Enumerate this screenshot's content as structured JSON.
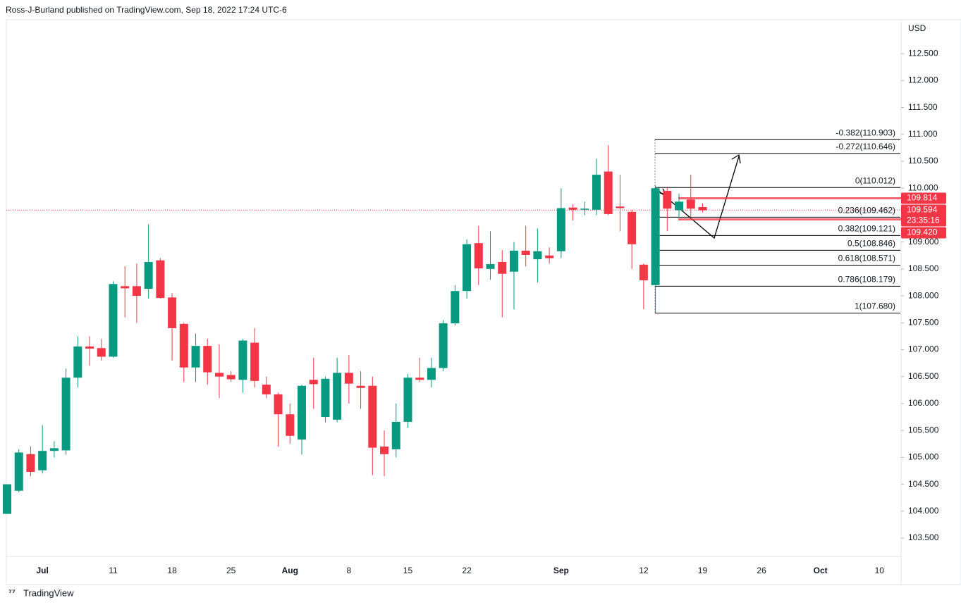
{
  "header": {
    "title": "Ross-J-Burland published on TradingView.com, Sep 18, 2022 17:24 UTC-6"
  },
  "footer": {
    "brand": "TradingView"
  },
  "chart_data": {
    "type": "candlestick",
    "y_axis_label": "USD",
    "up_color": "#089981",
    "down_color": "#f23645",
    "categories": [
      null,
      null,
      null,
      "Jul",
      null,
      null,
      null,
      null,
      null,
      "11",
      null,
      null,
      null,
      null,
      "18",
      null,
      null,
      null,
      null,
      "25",
      null,
      null,
      null,
      null,
      "Aug",
      null,
      null,
      null,
      null,
      "8",
      null,
      null,
      null,
      null,
      "15",
      null,
      null,
      null,
      null,
      "22",
      null,
      null,
      null,
      null,
      null,
      null,
      null,
      "Sep",
      null,
      null,
      null,
      null,
      null,
      null,
      "12",
      null,
      null,
      null,
      null,
      "19",
      null,
      null,
      null,
      null,
      "26",
      null,
      null,
      null,
      null,
      "Oct",
      null,
      null,
      null,
      null,
      "10",
      null
    ],
    "open": [
      103.95,
      104.38,
      105.06,
      104.76,
      105.12,
      105.13,
      106.48,
      107.06,
      107.03,
      106.87,
      108.18,
      108.18,
      108.13,
      108.66,
      107.97,
      107.48,
      106.67,
      107.07,
      106.57,
      106.53,
      106.44,
      107.13,
      106.35,
      106.17,
      105.8,
      105.33,
      106.44,
      105.75,
      105.7,
      106.57,
      106.33,
      106.33,
      105.2,
      105.15,
      105.66,
      106.48,
      106.44,
      106.66,
      107.49,
      108.09,
      108.98,
      108.5,
      108.63,
      108.45,
      108.84,
      108.68,
      108.75,
      108.83,
      109.64,
      109.6,
      109.6,
      110.31,
      109.66,
      109.56,
      108.58,
      108.2,
      109.95,
      109.59,
      109.79,
      109.65,
      null,
      null,
      null,
      null,
      null,
      null,
      null,
      null,
      null,
      null,
      null,
      null,
      null,
      null,
      null,
      null
    ],
    "high": [
      104.5,
      105.15,
      105.2,
      105.6,
      105.3,
      106.65,
      107.25,
      107.25,
      107.2,
      108.27,
      108.55,
      108.6,
      109.33,
      108.7,
      108.05,
      107.5,
      107.3,
      107.2,
      107.1,
      106.6,
      107.2,
      107.4,
      106.5,
      106.2,
      106.0,
      106.35,
      106.85,
      106.5,
      106.85,
      106.9,
      106.6,
      106.5,
      105.5,
      106.0,
      106.55,
      106.85,
      106.85,
      107.55,
      108.2,
      109.05,
      109.3,
      109.2,
      108.85,
      109.0,
      109.3,
      109.25,
      108.9,
      110.0,
      109.7,
      109.75,
      110.55,
      110.8,
      110.25,
      109.6,
      108.6,
      110.05,
      110.0,
      109.9,
      110.25,
      109.72,
      null,
      null,
      null,
      null,
      null,
      null,
      null,
      null,
      null,
      null,
      null,
      null,
      null,
      null,
      null,
      null
    ],
    "low": [
      103.95,
      104.35,
      104.65,
      104.7,
      105.0,
      105.05,
      106.3,
      106.7,
      106.8,
      106.85,
      107.6,
      107.5,
      107.95,
      107.95,
      106.8,
      106.4,
      106.4,
      106.35,
      106.1,
      106.4,
      106.2,
      106.3,
      106.1,
      105.2,
      105.25,
      105.05,
      105.9,
      105.65,
      105.65,
      106.0,
      105.9,
      104.67,
      104.65,
      105.0,
      105.55,
      106.4,
      106.3,
      106.6,
      107.45,
      107.95,
      108.2,
      108.3,
      107.6,
      107.75,
      108.55,
      108.25,
      108.6,
      108.7,
      109.4,
      109.5,
      109.5,
      109.5,
      109.2,
      108.5,
      107.75,
      107.68,
      109.2,
      109.45,
      109.45,
      109.55,
      null,
      null,
      null,
      null,
      null,
      null,
      null,
      null,
      null,
      null,
      null,
      null,
      null,
      null,
      null,
      null
    ],
    "close": [
      104.5,
      105.09,
      104.73,
      105.12,
      105.17,
      106.48,
      107.06,
      107.02,
      106.87,
      108.22,
      108.14,
      108.0,
      108.63,
      107.96,
      107.4,
      106.67,
      107.07,
      106.58,
      106.5,
      106.45,
      107.17,
      106.42,
      106.17,
      105.8,
      105.4,
      106.33,
      106.36,
      106.46,
      106.57,
      106.37,
      106.29,
      105.18,
      105.06,
      105.66,
      106.48,
      106.44,
      106.66,
      107.49,
      108.09,
      108.96,
      108.51,
      108.59,
      108.41,
      108.84,
      108.76,
      108.83,
      108.7,
      109.63,
      109.6,
      109.62,
      110.25,
      109.52,
      109.63,
      108.96,
      108.29,
      110.0,
      109.62,
      109.75,
      109.62,
      109.59,
      null,
      null,
      null,
      null,
      null,
      null,
      null,
      null,
      null,
      null,
      null,
      null,
      null,
      null,
      null,
      null
    ],
    "ylim": [
      103.16,
      113.13
    ],
    "yticks": [
      {
        "value": 103.5,
        "label": "103.500"
      },
      {
        "value": 104,
        "label": "104.000"
      },
      {
        "value": 104.5,
        "label": "104.500"
      },
      {
        "value": 105,
        "label": "105.000"
      },
      {
        "value": 105.5,
        "label": "105.500"
      },
      {
        "value": 106,
        "label": "106.000"
      },
      {
        "value": 106.5,
        "label": "106.500"
      },
      {
        "value": 107,
        "label": "107.000"
      },
      {
        "value": 107.5,
        "label": "107.500"
      },
      {
        "value": 108,
        "label": "108.000"
      },
      {
        "value": 108.5,
        "label": "108.500"
      },
      {
        "value": 109,
        "label": "109.000"
      },
      {
        "value": 109.5,
        "label": "109.500"
      },
      {
        "value": 110,
        "label": "110.000"
      },
      {
        "value": 110.5,
        "label": "110.500"
      },
      {
        "value": 111,
        "label": "111.000"
      },
      {
        "value": 111.5,
        "label": "111.500"
      },
      {
        "value": 112,
        "label": "112.000"
      },
      {
        "value": 112.5,
        "label": "112.500"
      }
    ],
    "grid": false,
    "fib_levels": [
      {
        "value": 110.903,
        "label": "-0.382(110.903)"
      },
      {
        "value": 110.646,
        "label": "-0.272(110.646)"
      },
      {
        "value": 110.012,
        "label": "0(110.012)"
      },
      {
        "value": 109.462,
        "label": "0.236(109.462)"
      },
      {
        "value": 109.121,
        "label": "0.382(109.121)"
      },
      {
        "value": 108.846,
        "label": "0.5(108.846)"
      },
      {
        "value": 108.571,
        "label": "0.618(108.571)"
      },
      {
        "value": 108.179,
        "label": "0.786(108.179)"
      },
      {
        "value": 107.68,
        "label": "1(107.680)"
      }
    ],
    "price_labels": [
      {
        "value": 109.814,
        "label": "109.814"
      },
      {
        "value": 109.594,
        "label": "109.594"
      },
      {
        "value": 109.42,
        "label": "109.420"
      }
    ],
    "countdown": "23:35:16",
    "zone_lines": [
      109.814,
      109.42
    ],
    "last_price": 109.594
  }
}
